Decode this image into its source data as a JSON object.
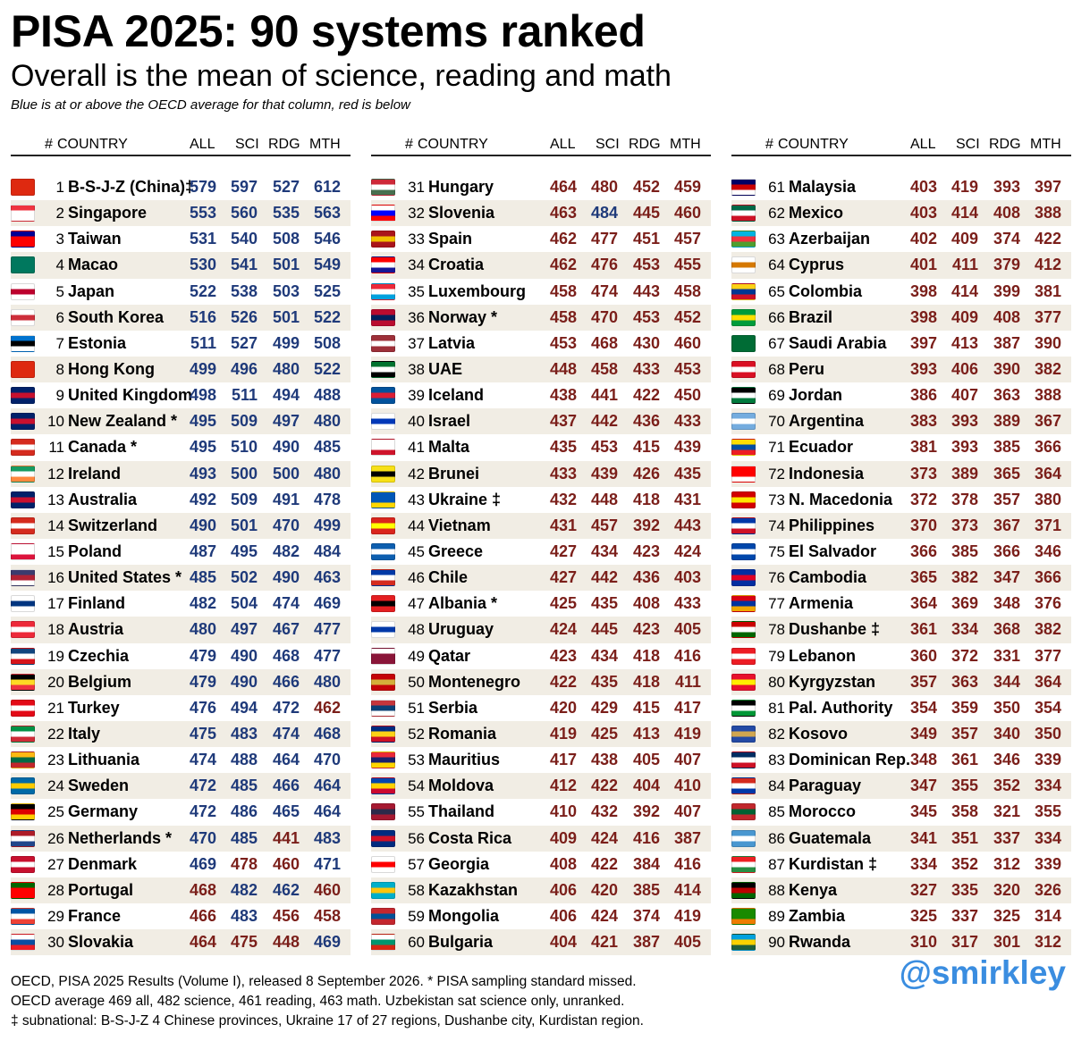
{
  "title": "PISA 2025: 90 systems ranked",
  "subtitle": "Overall is the mean of science, reading and math",
  "note": "Blue is at or above the OECD average for that column, red is below",
  "headers": {
    "num": "#",
    "country": "COUNTRY",
    "all": "ALL",
    "sci": "SCI",
    "rdg": "RDG",
    "mth": "MTH"
  },
  "oecd_average": {
    "all": 469,
    "sci": 482,
    "rdg": 461,
    "mth": 463
  },
  "colors": {
    "blue": "#1f3a7a",
    "red": "#7b1f1a",
    "row_alt": "#f1ede4",
    "handle": "#3a8de0"
  },
  "rows": [
    {
      "rank": "1",
      "name": "B-S-J-Z (China)‡",
      "all": 579,
      "sci": 597,
      "rdg": 527,
      "mth": 612,
      "flag": [
        "#de2910",
        "#de2910",
        "#de2910"
      ]
    },
    {
      "rank": "2",
      "name": "Singapore",
      "all": 553,
      "sci": 560,
      "rdg": 535,
      "mth": 563,
      "flag": [
        "#ef3340",
        "#ffffff",
        "#ffffff"
      ]
    },
    {
      "rank": "3",
      "name": "Taiwan",
      "all": 531,
      "sci": 540,
      "rdg": 508,
      "mth": 546,
      "flag": [
        "#000095",
        "#fe0000",
        "#fe0000"
      ]
    },
    {
      "rank": "4",
      "name": "Macao",
      "all": 530,
      "sci": 541,
      "rdg": 501,
      "mth": 549,
      "flag": [
        "#00785e",
        "#00785e",
        "#00785e"
      ]
    },
    {
      "rank": "5",
      "name": "Japan",
      "all": 522,
      "sci": 538,
      "rdg": 503,
      "mth": 525,
      "flag": [
        "#ffffff",
        "#bc002d",
        "#ffffff"
      ]
    },
    {
      "rank": "6",
      "name": "South Korea",
      "all": 516,
      "sci": 526,
      "rdg": 501,
      "mth": 522,
      "flag": [
        "#ffffff",
        "#cd2e3a",
        "#ffffff"
      ]
    },
    {
      "rank": "7",
      "name": "Estonia",
      "all": 511,
      "sci": 527,
      "rdg": 499,
      "mth": 508,
      "flag": [
        "#0072ce",
        "#000000",
        "#ffffff"
      ]
    },
    {
      "rank": "8",
      "name": "Hong Kong",
      "all": 499,
      "sci": 496,
      "rdg": 480,
      "mth": 522,
      "flag": [
        "#de2910",
        "#de2910",
        "#de2910"
      ]
    },
    {
      "rank": "9",
      "name": "United Kingdom",
      "all": 498,
      "sci": 511,
      "rdg": 494,
      "mth": 488,
      "flag": [
        "#012169",
        "#c8102e",
        "#012169"
      ]
    },
    {
      "rank": "10",
      "name": "New Zealand *",
      "all": 495,
      "sci": 509,
      "rdg": 497,
      "mth": 480,
      "flag": [
        "#012169",
        "#c8102e",
        "#012169"
      ]
    },
    {
      "rank": "11",
      "name": "Canada *",
      "all": 495,
      "sci": 510,
      "rdg": 490,
      "mth": 485,
      "flag": [
        "#d52b1e",
        "#ffffff",
        "#d52b1e"
      ]
    },
    {
      "rank": "12",
      "name": "Ireland",
      "all": 493,
      "sci": 500,
      "rdg": 500,
      "mth": 480,
      "flag": [
        "#169b62",
        "#ffffff",
        "#ff883e"
      ]
    },
    {
      "rank": "13",
      "name": "Australia",
      "all": 492,
      "sci": 509,
      "rdg": 491,
      "mth": 478,
      "flag": [
        "#012169",
        "#c8102e",
        "#012169"
      ]
    },
    {
      "rank": "14",
      "name": "Switzerland",
      "all": 490,
      "sci": 501,
      "rdg": 470,
      "mth": 499,
      "flag": [
        "#d52b1e",
        "#ffffff",
        "#d52b1e"
      ]
    },
    {
      "rank": "15",
      "name": "Poland",
      "all": 487,
      "sci": 495,
      "rdg": 482,
      "mth": 484,
      "flag": [
        "#ffffff",
        "#ffffff",
        "#dc143c"
      ]
    },
    {
      "rank": "16",
      "name": "United States *",
      "all": 485,
      "sci": 502,
      "rdg": 490,
      "mth": 463,
      "flag": [
        "#3c3b6e",
        "#b22234",
        "#ffffff"
      ]
    },
    {
      "rank": "17",
      "name": "Finland",
      "all": 482,
      "sci": 504,
      "rdg": 474,
      "mth": 469,
      "flag": [
        "#ffffff",
        "#003580",
        "#ffffff"
      ]
    },
    {
      "rank": "18",
      "name": "Austria",
      "all": 480,
      "sci": 497,
      "rdg": 467,
      "mth": 477,
      "flag": [
        "#ed2939",
        "#ffffff",
        "#ed2939"
      ]
    },
    {
      "rank": "19",
      "name": "Czechia",
      "all": 479,
      "sci": 490,
      "rdg": 468,
      "mth": 477,
      "flag": [
        "#11457e",
        "#ffffff",
        "#d7141a"
      ]
    },
    {
      "rank": "20",
      "name": "Belgium",
      "all": 479,
      "sci": 490,
      "rdg": 466,
      "mth": 480,
      "flag": [
        "#000000",
        "#fdda24",
        "#ef3340"
      ]
    },
    {
      "rank": "21",
      "name": "Turkey",
      "all": 476,
      "sci": 494,
      "rdg": 472,
      "mth": 462,
      "flag": [
        "#e30a17",
        "#ffffff",
        "#e30a17"
      ]
    },
    {
      "rank": "22",
      "name": "Italy",
      "all": 475,
      "sci": 483,
      "rdg": 474,
      "mth": 468,
      "flag": [
        "#009246",
        "#ffffff",
        "#ce2b37"
      ]
    },
    {
      "rank": "23",
      "name": "Lithuania",
      "all": 474,
      "sci": 488,
      "rdg": 464,
      "mth": 470,
      "flag": [
        "#fdb913",
        "#006a44",
        "#c1272d"
      ]
    },
    {
      "rank": "24",
      "name": "Sweden",
      "all": 472,
      "sci": 485,
      "rdg": 466,
      "mth": 464,
      "flag": [
        "#006aa7",
        "#fecc00",
        "#006aa7"
      ]
    },
    {
      "rank": "25",
      "name": "Germany",
      "all": 472,
      "sci": 486,
      "rdg": 465,
      "mth": 464,
      "flag": [
        "#000000",
        "#dd0000",
        "#ffce00"
      ]
    },
    {
      "rank": "26",
      "name": "Netherlands *",
      "all": 470,
      "sci": 485,
      "rdg": 441,
      "mth": 483,
      "flag": [
        "#ae1c28",
        "#ffffff",
        "#21468b"
      ]
    },
    {
      "rank": "27",
      "name": "Denmark",
      "all": 469,
      "sci": 478,
      "rdg": 460,
      "mth": 471,
      "flag": [
        "#c8102e",
        "#ffffff",
        "#c8102e"
      ]
    },
    {
      "rank": "28",
      "name": "Portugal",
      "all": 468,
      "sci": 482,
      "rdg": 462,
      "mth": 460,
      "flag": [
        "#006600",
        "#ff0000",
        "#ff0000"
      ]
    },
    {
      "rank": "29",
      "name": "France",
      "all": 466,
      "sci": 483,
      "rdg": 456,
      "mth": 458,
      "flag": [
        "#0055a4",
        "#ffffff",
        "#ef4135"
      ]
    },
    {
      "rank": "30",
      "name": "Slovakia",
      "all": 464,
      "sci": 475,
      "rdg": 448,
      "mth": 469,
      "flag": [
        "#ffffff",
        "#0b4ea2",
        "#ee1c25"
      ]
    },
    {
      "rank": "31",
      "name": "Hungary",
      "all": 464,
      "sci": 480,
      "rdg": 452,
      "mth": 459,
      "flag": [
        "#ce2939",
        "#ffffff",
        "#477050"
      ]
    },
    {
      "rank": "32",
      "name": "Slovenia",
      "all": 463,
      "sci": 484,
      "rdg": 445,
      "mth": 460,
      "flag": [
        "#ffffff",
        "#0000ff",
        "#ff0000"
      ]
    },
    {
      "rank": "33",
      "name": "Spain",
      "all": 462,
      "sci": 477,
      "rdg": 451,
      "mth": 457,
      "flag": [
        "#aa151b",
        "#f1bf00",
        "#aa151b"
      ]
    },
    {
      "rank": "34",
      "name": "Croatia",
      "all": 462,
      "sci": 476,
      "rdg": 453,
      "mth": 455,
      "flag": [
        "#ff0000",
        "#ffffff",
        "#171796"
      ]
    },
    {
      "rank": "35",
      "name": "Luxembourg",
      "all": 458,
      "sci": 474,
      "rdg": 443,
      "mth": 458,
      "flag": [
        "#ed2939",
        "#ffffff",
        "#00a1de"
      ]
    },
    {
      "rank": "36",
      "name": "Norway *",
      "all": 458,
      "sci": 470,
      "rdg": 453,
      "mth": 452,
      "flag": [
        "#ba0c2f",
        "#00205b",
        "#ba0c2f"
      ]
    },
    {
      "rank": "37",
      "name": "Latvia",
      "all": 453,
      "sci": 468,
      "rdg": 430,
      "mth": 460,
      "flag": [
        "#9e3039",
        "#ffffff",
        "#9e3039"
      ]
    },
    {
      "rank": "38",
      "name": "UAE",
      "all": 448,
      "sci": 458,
      "rdg": 433,
      "mth": 453,
      "flag": [
        "#00732f",
        "#ffffff",
        "#000000"
      ]
    },
    {
      "rank": "39",
      "name": "Iceland",
      "all": 438,
      "sci": 441,
      "rdg": 422,
      "mth": 450,
      "flag": [
        "#02529c",
        "#dc1e35",
        "#02529c"
      ]
    },
    {
      "rank": "40",
      "name": "Israel",
      "all": 437,
      "sci": 442,
      "rdg": 436,
      "mth": 433,
      "flag": [
        "#ffffff",
        "#0038b8",
        "#ffffff"
      ]
    },
    {
      "rank": "41",
      "name": "Malta",
      "all": 435,
      "sci": 453,
      "rdg": 415,
      "mth": 439,
      "flag": [
        "#ffffff",
        "#ffffff",
        "#cf142b"
      ]
    },
    {
      "rank": "42",
      "name": "Brunei",
      "all": 433,
      "sci": 439,
      "rdg": 426,
      "mth": 435,
      "flag": [
        "#f7e017",
        "#000000",
        "#f7e017"
      ]
    },
    {
      "rank": "43",
      "name": "Ukraine ‡",
      "all": 432,
      "sci": 448,
      "rdg": 418,
      "mth": 431,
      "flag": [
        "#0057b7",
        "#0057b7",
        "#ffd700"
      ]
    },
    {
      "rank": "44",
      "name": "Vietnam",
      "all": 431,
      "sci": 457,
      "rdg": 392,
      "mth": 443,
      "flag": [
        "#da251d",
        "#ffff00",
        "#da251d"
      ]
    },
    {
      "rank": "45",
      "name": "Greece",
      "all": 427,
      "sci": 434,
      "rdg": 423,
      "mth": 424,
      "flag": [
        "#0d5eaf",
        "#ffffff",
        "#0d5eaf"
      ]
    },
    {
      "rank": "46",
      "name": "Chile",
      "all": 427,
      "sci": 442,
      "rdg": 436,
      "mth": 403,
      "flag": [
        "#0039a6",
        "#ffffff",
        "#d52b1e"
      ]
    },
    {
      "rank": "47",
      "name": "Albania *",
      "all": 425,
      "sci": 435,
      "rdg": 408,
      "mth": 433,
      "flag": [
        "#e41e20",
        "#000000",
        "#e41e20"
      ]
    },
    {
      "rank": "48",
      "name": "Uruguay",
      "all": 424,
      "sci": 445,
      "rdg": 423,
      "mth": 405,
      "flag": [
        "#ffffff",
        "#0038a8",
        "#ffffff"
      ]
    },
    {
      "rank": "49",
      "name": "Qatar",
      "all": 423,
      "sci": 434,
      "rdg": 418,
      "mth": 416,
      "flag": [
        "#ffffff",
        "#8a1538",
        "#8a1538"
      ]
    },
    {
      "rank": "50",
      "name": "Montenegro",
      "all": 422,
      "sci": 435,
      "rdg": 418,
      "mth": 411,
      "flag": [
        "#c40308",
        "#d4af3a",
        "#c40308"
      ]
    },
    {
      "rank": "51",
      "name": "Serbia",
      "all": 420,
      "sci": 429,
      "rdg": 415,
      "mth": 417,
      "flag": [
        "#c6363c",
        "#0c4076",
        "#ffffff"
      ]
    },
    {
      "rank": "52",
      "name": "Romania",
      "all": 419,
      "sci": 425,
      "rdg": 413,
      "mth": 419,
      "flag": [
        "#002b7f",
        "#fcd116",
        "#ce1126"
      ]
    },
    {
      "rank": "53",
      "name": "Mauritius",
      "all": 417,
      "sci": 438,
      "rdg": 405,
      "mth": 407,
      "flag": [
        "#ea2839",
        "#1a206d",
        "#ffd500"
      ]
    },
    {
      "rank": "54",
      "name": "Moldova",
      "all": 412,
      "sci": 422,
      "rdg": 404,
      "mth": 410,
      "flag": [
        "#0046ae",
        "#ffd200",
        "#cc092f"
      ]
    },
    {
      "rank": "55",
      "name": "Thailand",
      "all": 410,
      "sci": 432,
      "rdg": 392,
      "mth": 407,
      "flag": [
        "#a51931",
        "#2d2a4a",
        "#a51931"
      ]
    },
    {
      "rank": "56",
      "name": "Costa Rica",
      "all": 409,
      "sci": 424,
      "rdg": 416,
      "mth": 387,
      "flag": [
        "#002b7f",
        "#ce1126",
        "#002b7f"
      ]
    },
    {
      "rank": "57",
      "name": "Georgia",
      "all": 408,
      "sci": 422,
      "rdg": 384,
      "mth": 416,
      "flag": [
        "#ffffff",
        "#ff0000",
        "#ffffff"
      ]
    },
    {
      "rank": "58",
      "name": "Kazakhstan",
      "all": 406,
      "sci": 420,
      "rdg": 385,
      "mth": 414,
      "flag": [
        "#00afca",
        "#fec50c",
        "#00afca"
      ]
    },
    {
      "rank": "59",
      "name": "Mongolia",
      "all": 406,
      "sci": 424,
      "rdg": 374,
      "mth": 419,
      "flag": [
        "#c4272f",
        "#015197",
        "#c4272f"
      ]
    },
    {
      "rank": "60",
      "name": "Bulgaria",
      "all": 404,
      "sci": 421,
      "rdg": 387,
      "mth": 405,
      "flag": [
        "#ffffff",
        "#00966e",
        "#d62612"
      ]
    },
    {
      "rank": "61",
      "name": "Malaysia",
      "all": 403,
      "sci": 419,
      "rdg": 393,
      "mth": 397,
      "flag": [
        "#010066",
        "#cc0001",
        "#ffffff"
      ]
    },
    {
      "rank": "62",
      "name": "Mexico",
      "all": 403,
      "sci": 414,
      "rdg": 408,
      "mth": 388,
      "flag": [
        "#006847",
        "#ffffff",
        "#ce1126"
      ]
    },
    {
      "rank": "63",
      "name": "Azerbaijan",
      "all": 402,
      "sci": 409,
      "rdg": 374,
      "mth": 422,
      "flag": [
        "#00b5e2",
        "#ef3340",
        "#509e2f"
      ]
    },
    {
      "rank": "64",
      "name": "Cyprus",
      "all": 401,
      "sci": 411,
      "rdg": 379,
      "mth": 412,
      "flag": [
        "#ffffff",
        "#d57800",
        "#ffffff"
      ]
    },
    {
      "rank": "65",
      "name": "Colombia",
      "all": 398,
      "sci": 414,
      "rdg": 399,
      "mth": 381,
      "flag": [
        "#fcd116",
        "#003893",
        "#ce1126"
      ]
    },
    {
      "rank": "66",
      "name": "Brazil",
      "all": 398,
      "sci": 409,
      "rdg": 408,
      "mth": 377,
      "flag": [
        "#009c3b",
        "#ffdf00",
        "#009c3b"
      ]
    },
    {
      "rank": "67",
      "name": "Saudi Arabia",
      "all": 397,
      "sci": 413,
      "rdg": 387,
      "mth": 390,
      "flag": [
        "#006c35",
        "#006c35",
        "#006c35"
      ]
    },
    {
      "rank": "68",
      "name": "Peru",
      "all": 393,
      "sci": 406,
      "rdg": 390,
      "mth": 382,
      "flag": [
        "#d91023",
        "#ffffff",
        "#d91023"
      ]
    },
    {
      "rank": "69",
      "name": "Jordan",
      "all": 386,
      "sci": 407,
      "rdg": 363,
      "mth": 388,
      "flag": [
        "#000000",
        "#ffffff",
        "#007a3d"
      ]
    },
    {
      "rank": "70",
      "name": "Argentina",
      "all": 383,
      "sci": 393,
      "rdg": 389,
      "mth": 367,
      "flag": [
        "#74acdf",
        "#ffffff",
        "#74acdf"
      ]
    },
    {
      "rank": "71",
      "name": "Ecuador",
      "all": 381,
      "sci": 393,
      "rdg": 385,
      "mth": 366,
      "flag": [
        "#ffdd00",
        "#034ea2",
        "#ed1c24"
      ]
    },
    {
      "rank": "72",
      "name": "Indonesia",
      "all": 373,
      "sci": 389,
      "rdg": 365,
      "mth": 364,
      "flag": [
        "#ff0000",
        "#ff0000",
        "#ffffff"
      ]
    },
    {
      "rank": "73",
      "name": "N. Macedonia",
      "all": 372,
      "sci": 378,
      "rdg": 357,
      "mth": 380,
      "flag": [
        "#d20000",
        "#ffe600",
        "#d20000"
      ]
    },
    {
      "rank": "74",
      "name": "Philippines",
      "all": 370,
      "sci": 373,
      "rdg": 367,
      "mth": 371,
      "flag": [
        "#0038a8",
        "#ffffff",
        "#ce1126"
      ]
    },
    {
      "rank": "75",
      "name": "El Salvador",
      "all": 366,
      "sci": 385,
      "rdg": 366,
      "mth": 346,
      "flag": [
        "#0047ab",
        "#ffffff",
        "#0047ab"
      ]
    },
    {
      "rank": "76",
      "name": "Cambodia",
      "all": 365,
      "sci": 382,
      "rdg": 347,
      "mth": 366,
      "flag": [
        "#032ea1",
        "#e00025",
        "#032ea1"
      ]
    },
    {
      "rank": "77",
      "name": "Armenia",
      "all": 364,
      "sci": 369,
      "rdg": 348,
      "mth": 376,
      "flag": [
        "#d90012",
        "#0033a0",
        "#f2a800"
      ]
    },
    {
      "rank": "78",
      "name": "Dushanbe ‡",
      "all": 361,
      "sci": 334,
      "rdg": 368,
      "mth": 382,
      "flag": [
        "#cc0000",
        "#ffffff",
        "#006600"
      ]
    },
    {
      "rank": "79",
      "name": "Lebanon",
      "all": 360,
      "sci": 372,
      "rdg": 331,
      "mth": 377,
      "flag": [
        "#ed1c24",
        "#ffffff",
        "#ed1c24"
      ]
    },
    {
      "rank": "80",
      "name": "Kyrgyzstan",
      "all": 357,
      "sci": 363,
      "rdg": 344,
      "mth": 364,
      "flag": [
        "#e8112d",
        "#ffef00",
        "#e8112d"
      ]
    },
    {
      "rank": "81",
      "name": "Pal. Authority",
      "all": 354,
      "sci": 359,
      "rdg": 350,
      "mth": 354,
      "flag": [
        "#000000",
        "#ffffff",
        "#009736"
      ]
    },
    {
      "rank": "82",
      "name": "Kosovo",
      "all": 349,
      "sci": 357,
      "rdg": 340,
      "mth": 350,
      "flag": [
        "#244aa5",
        "#d0a650",
        "#244aa5"
      ]
    },
    {
      "rank": "83",
      "name": "Dominican Rep.",
      "all": 348,
      "sci": 361,
      "rdg": 346,
      "mth": 339,
      "flag": [
        "#002d62",
        "#ffffff",
        "#ce1126"
      ]
    },
    {
      "rank": "84",
      "name": "Paraguay",
      "all": 347,
      "sci": 355,
      "rdg": 352,
      "mth": 334,
      "flag": [
        "#d52b1e",
        "#ffffff",
        "#0038a8"
      ]
    },
    {
      "rank": "85",
      "name": "Morocco",
      "all": 345,
      "sci": 358,
      "rdg": 321,
      "mth": 355,
      "flag": [
        "#c1272d",
        "#006233",
        "#c1272d"
      ]
    },
    {
      "rank": "86",
      "name": "Guatemala",
      "all": 341,
      "sci": 351,
      "rdg": 337,
      "mth": 334,
      "flag": [
        "#4997d0",
        "#ffffff",
        "#4997d0"
      ]
    },
    {
      "rank": "87",
      "name": "Kurdistan ‡",
      "all": 334,
      "sci": 352,
      "rdg": 312,
      "mth": 339,
      "flag": [
        "#ed2024",
        "#ffffff",
        "#278e43"
      ]
    },
    {
      "rank": "88",
      "name": "Kenya",
      "all": 327,
      "sci": 335,
      "rdg": 320,
      "mth": 326,
      "flag": [
        "#000000",
        "#bb0000",
        "#006600"
      ]
    },
    {
      "rank": "89",
      "name": "Zambia",
      "all": 325,
      "sci": 337,
      "rdg": 325,
      "mth": 314,
      "flag": [
        "#198a00",
        "#198a00",
        "#ef7d00"
      ]
    },
    {
      "rank": "90",
      "name": "Rwanda",
      "all": 310,
      "sci": 317,
      "rdg": 301,
      "mth": 312,
      "flag": [
        "#00a1de",
        "#fad201",
        "#20603d"
      ]
    }
  ],
  "footer": [
    "OECD, PISA 2025 Results (Volume I), released 8 September 2026. * PISA sampling standard missed.",
    "OECD average 469 all, 482 science, 461 reading, 463 math. Uzbekistan sat science only, unranked.",
    "‡ subnational: B-S-J-Z 4 Chinese provinces, Ukraine 17 of 27 regions, Dushanbe city, Kurdistan region."
  ],
  "handle": "@smirkley"
}
